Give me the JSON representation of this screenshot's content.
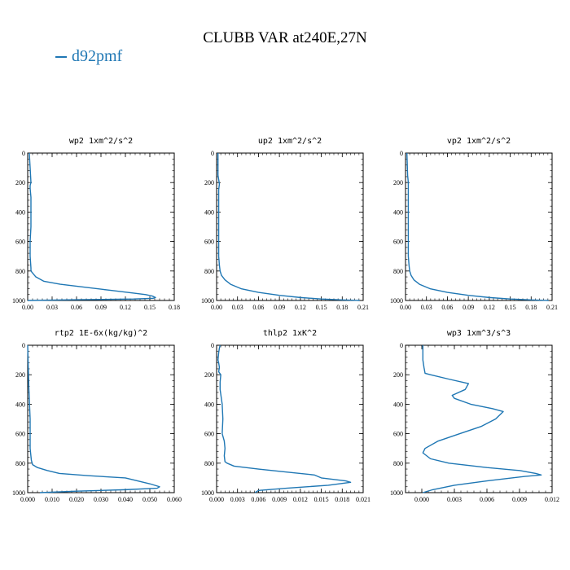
{
  "title": "CLUBB VAR at240E,27N",
  "legend": {
    "color": "#1f77b4",
    "label": "d92pmf"
  },
  "chart_data": [
    {
      "type": "line",
      "title": "wp2  1xm^2/s^2",
      "xlim": [
        0,
        0.18
      ],
      "ylim": [
        1000,
        0
      ],
      "xticks": [
        0,
        0.03,
        0.06,
        0.09,
        0.12,
        0.15,
        0.18
      ],
      "xtick_labels": [
        "0.00",
        "0.03",
        "0.06",
        "0.09",
        "0.12",
        "0.15",
        "0.18"
      ],
      "yticks": [
        0,
        200,
        400,
        600,
        800,
        1000
      ],
      "ytick_labels": [
        "0",
        "200",
        "400",
        "600",
        "800",
        "1000"
      ],
      "series": [
        {
          "color": "#1f77b4",
          "x": [
            0.002,
            0.003,
            0.004,
            0.003,
            0.003,
            0.004,
            0.004,
            0.004,
            0.003,
            0.003,
            0.004,
            0.004,
            0.01,
            0.02,
            0.04,
            0.07,
            0.1,
            0.13,
            0.145,
            0.153,
            0.157,
            0.154,
            0.13,
            0.06,
            0.0
          ],
          "y": [
            0,
            100,
            200,
            220,
            240,
            300,
            400,
            500,
            600,
            700,
            780,
            800,
            840,
            870,
            890,
            910,
            930,
            950,
            960,
            970,
            980,
            985,
            990,
            995,
            1000
          ]
        }
      ]
    },
    {
      "type": "line",
      "title": "up2  1xm^2/s^2",
      "xlim": [
        0,
        0.21
      ],
      "ylim": [
        1000,
        0
      ],
      "xticks": [
        0,
        0.03,
        0.06,
        0.09,
        0.12,
        0.15,
        0.18,
        0.21
      ],
      "xtick_labels": [
        "0.00",
        "0.03",
        "0.06",
        "0.09",
        "0.12",
        "0.15",
        "0.18",
        "0.21"
      ],
      "yticks": [
        0,
        200,
        400,
        600,
        800,
        1000
      ],
      "ytick_labels": [
        "0",
        "200",
        "400",
        "600",
        "800",
        "1000"
      ],
      "series": [
        {
          "color": "#1f77b4",
          "x": [
            0.002,
            0.002,
            0.004,
            0.003,
            0.003,
            0.003,
            0.003,
            0.004,
            0.005,
            0.007,
            0.012,
            0.02,
            0.035,
            0.06,
            0.09,
            0.12,
            0.15,
            0.18,
            0.2,
            0.205
          ],
          "y": [
            0,
            150,
            210,
            250,
            400,
            600,
            700,
            760,
            800,
            830,
            860,
            890,
            920,
            945,
            965,
            980,
            990,
            996,
            999,
            1000
          ]
        }
      ]
    },
    {
      "type": "line",
      "title": "vp2  1xm^2/s^2",
      "xlim": [
        0,
        0.21
      ],
      "ylim": [
        1000,
        0
      ],
      "xticks": [
        0,
        0.03,
        0.06,
        0.09,
        0.12,
        0.15,
        0.18,
        0.21
      ],
      "xtick_labels": [
        "0.00",
        "0.03",
        "0.06",
        "0.09",
        "0.12",
        "0.15",
        "0.18",
        "0.21"
      ],
      "yticks": [
        0,
        200,
        400,
        600,
        800,
        1000
      ],
      "ytick_labels": [
        "0",
        "200",
        "400",
        "600",
        "800",
        "1000"
      ],
      "series": [
        {
          "color": "#1f77b4",
          "x": [
            0.002,
            0.003,
            0.004,
            0.004,
            0.004,
            0.004,
            0.005,
            0.006,
            0.008,
            0.012,
            0.02,
            0.035,
            0.06,
            0.09,
            0.12,
            0.15,
            0.18,
            0.2,
            0.205
          ],
          "y": [
            0,
            150,
            200,
            300,
            500,
            700,
            760,
            800,
            830,
            860,
            890,
            920,
            945,
            965,
            980,
            990,
            996,
            999,
            1000
          ]
        }
      ]
    },
    {
      "type": "line",
      "title": "rtp2  1E-6x(kg/kg)^2",
      "xlim": [
        0,
        0.06
      ],
      "ylim": [
        1000,
        0
      ],
      "xticks": [
        0,
        0.01,
        0.02,
        0.03,
        0.04,
        0.05,
        0.06
      ],
      "xtick_labels": [
        "0.000",
        "0.010",
        "0.020",
        "0.030",
        "0.040",
        "0.050",
        "0.060"
      ],
      "yticks": [
        0,
        200,
        400,
        600,
        800,
        1000
      ],
      "ytick_labels": [
        "0",
        "200",
        "400",
        "600",
        "800",
        "1000"
      ],
      "series": [
        {
          "color": "#1f77b4",
          "x": [
            0.0,
            0.0005,
            0.001,
            0.001,
            0.001,
            0.0015,
            0.002,
            0.004,
            0.008,
            0.013,
            0.025,
            0.04,
            0.045,
            0.05,
            0.054,
            0.053,
            0.04,
            0.02,
            0.005
          ],
          "y": [
            0,
            300,
            500,
            600,
            700,
            780,
            810,
            830,
            850,
            870,
            885,
            900,
            920,
            940,
            960,
            970,
            980,
            990,
            1000
          ]
        }
      ]
    },
    {
      "type": "line",
      "title": "thlp2  1xK^2",
      "xlim": [
        0,
        0.021
      ],
      "ylim": [
        1000,
        0
      ],
      "xticks": [
        0,
        0.003,
        0.006,
        0.009,
        0.012,
        0.015,
        0.018,
        0.021
      ],
      "xtick_labels": [
        "0.000",
        "0.003",
        "0.006",
        "0.009",
        "0.012",
        "0.015",
        "0.018",
        "0.021"
      ],
      "yticks": [
        0,
        200,
        400,
        600,
        800,
        1000
      ],
      "ytick_labels": [
        "0",
        "200",
        "400",
        "600",
        "800",
        "1000"
      ],
      "series": [
        {
          "color": "#1f77b4",
          "x": [
            0.0005,
            0.0004,
            0.0003,
            0.0002,
            0.0003,
            0.0004,
            0.0003,
            0.0006,
            0.0005,
            0.0005,
            0.0008,
            0.0009,
            0.0008,
            0.0011,
            0.0012,
            0.0011,
            0.0012,
            0.0015,
            0.0025,
            0.006,
            0.01,
            0.014,
            0.015,
            0.0185,
            0.0192,
            0.016,
            0.01,
            0.006,
            0.0055
          ],
          "y": [
            0,
            20,
            50,
            100,
            120,
            150,
            180,
            200,
            250,
            300,
            400,
            500,
            600,
            650,
            700,
            750,
            790,
            800,
            820,
            840,
            860,
            880,
            900,
            920,
            930,
            950,
            970,
            985,
            1000
          ]
        }
      ]
    },
    {
      "type": "line",
      "title": "wp3  1xm^3/s^3",
      "xlim": [
        -0.0015,
        0.012
      ],
      "ylim": [
        1000,
        0
      ],
      "xticks": [
        0,
        0.003,
        0.006,
        0.009,
        0.012
      ],
      "xtick_labels": [
        "0.000",
        "0.003",
        "0.006",
        "0.009",
        "0.012"
      ],
      "yticks": [
        0,
        200,
        400,
        600,
        800,
        1000
      ],
      "ytick_labels": [
        "0",
        "200",
        "400",
        "600",
        "800",
        "1000"
      ],
      "series": [
        {
          "color": "#1f77b4",
          "x": [
            0.0001,
            0.0001,
            0.0002,
            0.0003,
            0.0008,
            0.0025,
            0.0043,
            0.004,
            0.0028,
            0.003,
            0.0045,
            0.0065,
            0.0075,
            0.0068,
            0.0055,
            0.0035,
            0.0015,
            0.0003,
            0.0001,
            0.0008,
            0.0025,
            0.006,
            0.009,
            0.0105,
            0.011,
            0.0095,
            0.006,
            0.003,
            0.001,
            0.0001
          ],
          "y": [
            0,
            100,
            150,
            190,
            200,
            230,
            260,
            300,
            340,
            360,
            400,
            430,
            450,
            500,
            550,
            600,
            650,
            700,
            730,
            770,
            800,
            830,
            850,
            870,
            880,
            890,
            920,
            950,
            980,
            1000
          ]
        }
      ]
    }
  ]
}
